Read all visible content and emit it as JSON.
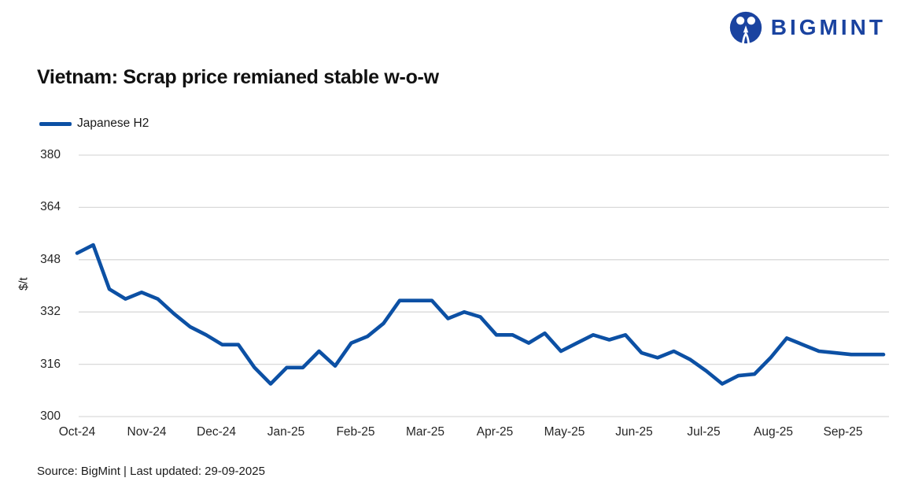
{
  "logo": {
    "text": "BIGMINT"
  },
  "title": "Vietnam: Scrap price remianed stable w-o-w",
  "legend": {
    "label": "Japanese H2"
  },
  "footer": "Source: BigMint | Last updated: 29-09-2025",
  "colors": {
    "line": "#0c50a4",
    "logo_blue": "#1a43a0",
    "grid": "#d9d9d9",
    "tick_text": "#262626"
  },
  "chart_data": {
    "type": "line",
    "title": "Vietnam: Scrap price remianed stable w-o-w",
    "ylabel": "$/t",
    "xlabel": "",
    "ylim": [
      300,
      380
    ],
    "y_ticks": [
      380,
      364,
      348,
      332,
      316,
      300
    ],
    "x_tick_labels": [
      "Oct-24",
      "Nov-24",
      "Dec-24",
      "Jan-25",
      "Feb-25",
      "Mar-25",
      "Apr-25",
      "May-25",
      "Jun-25",
      "Jul-25",
      "Aug-25",
      "Sep-25"
    ],
    "grid": "horizontal",
    "legend_position": "top-left",
    "series": [
      {
        "name": "Japanese H2",
        "unit": "$/t",
        "values": [
          350,
          352.5,
          339,
          336,
          338,
          336,
          331.5,
          327.5,
          325,
          322,
          322,
          315,
          310,
          315,
          315,
          320,
          315.5,
          322.5,
          324.5,
          328.5,
          335.5,
          335.5,
          335.5,
          330,
          332,
          330.5,
          325,
          325,
          322.5,
          325.5,
          320,
          322.5,
          325,
          323.5,
          325,
          319.5,
          318,
          320,
          317.5,
          314,
          310,
          312.5,
          313,
          318,
          324,
          322,
          320,
          319.5,
          319,
          319,
          319
        ]
      }
    ]
  }
}
